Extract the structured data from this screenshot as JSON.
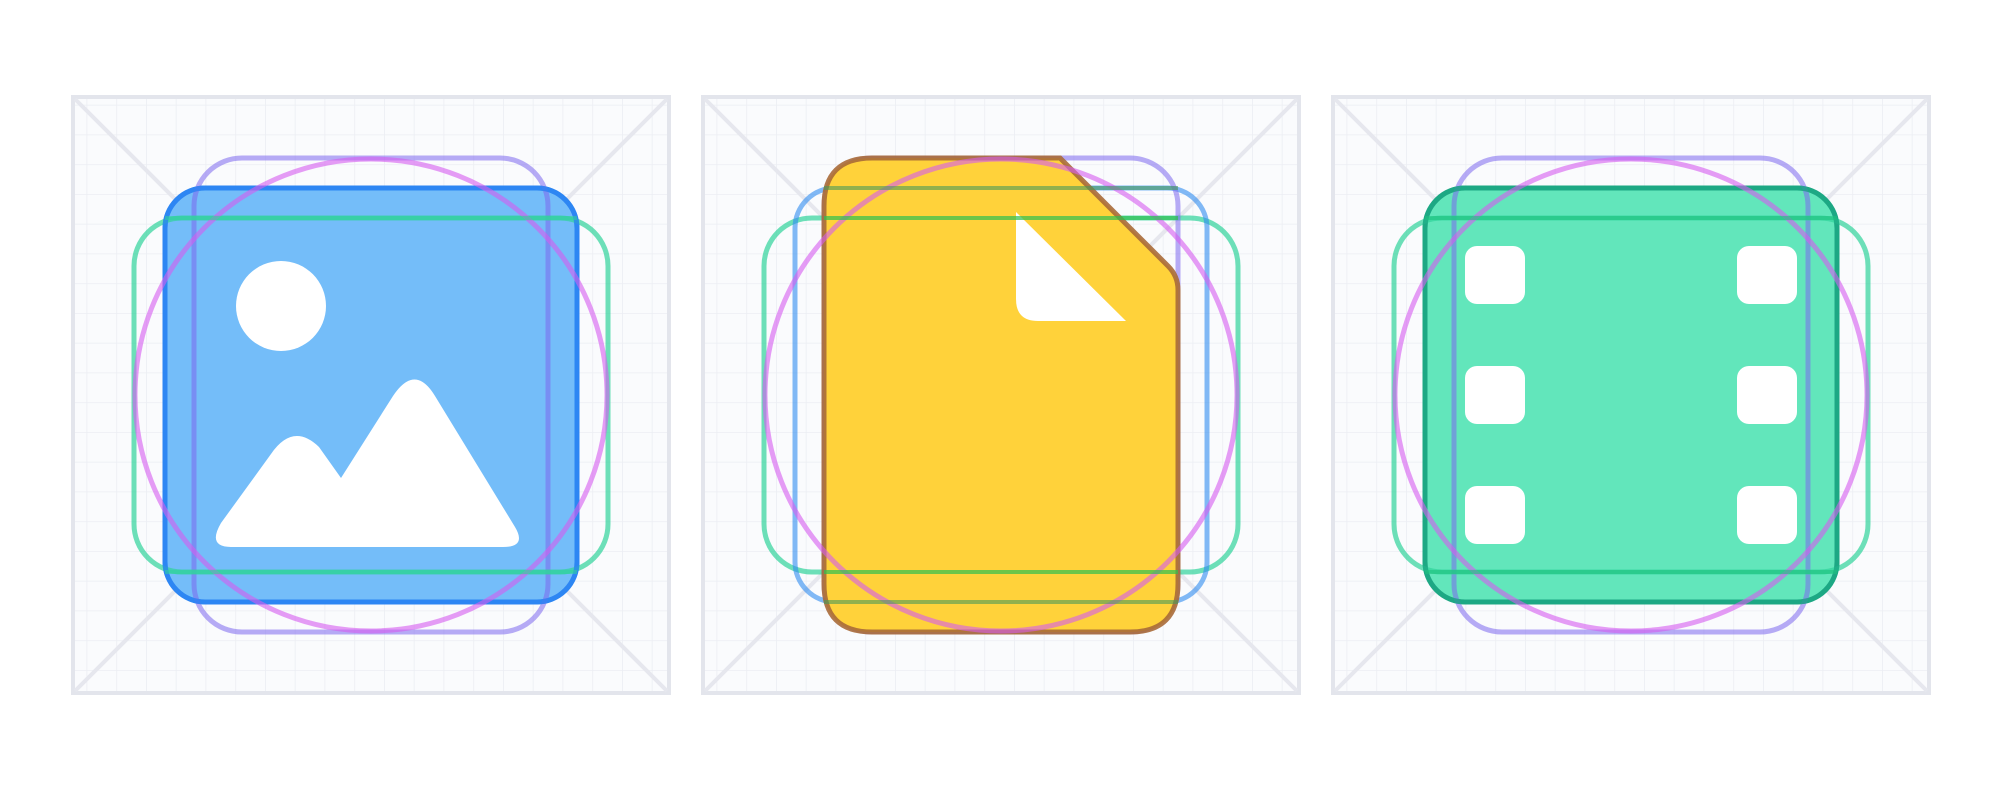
{
  "colors": {
    "grid_line": "#eceef3",
    "frame_border": "#e3e5ec",
    "diagonal": "#e6e7ee",
    "keyline_square": "#7b68ee",
    "keyline_circle": "#d65cf0",
    "keyline_portrait": "#2f8cf0",
    "keyline_landscape": "#2fd39a",
    "glyph_white": "#ffffff"
  },
  "panels": [
    {
      "name": "image",
      "icon": "image-icon",
      "fill": "#74bdf9",
      "stroke": "#2e86f3",
      "keyline": "landscape"
    },
    {
      "name": "document",
      "icon": "document-icon",
      "fill": "#ffd23a",
      "stroke": "#a86a38",
      "keyline": "portrait"
    },
    {
      "name": "video",
      "icon": "film-icon",
      "fill": "#62e6bb",
      "stroke": "#1ea884",
      "keyline": "landscape"
    }
  ]
}
